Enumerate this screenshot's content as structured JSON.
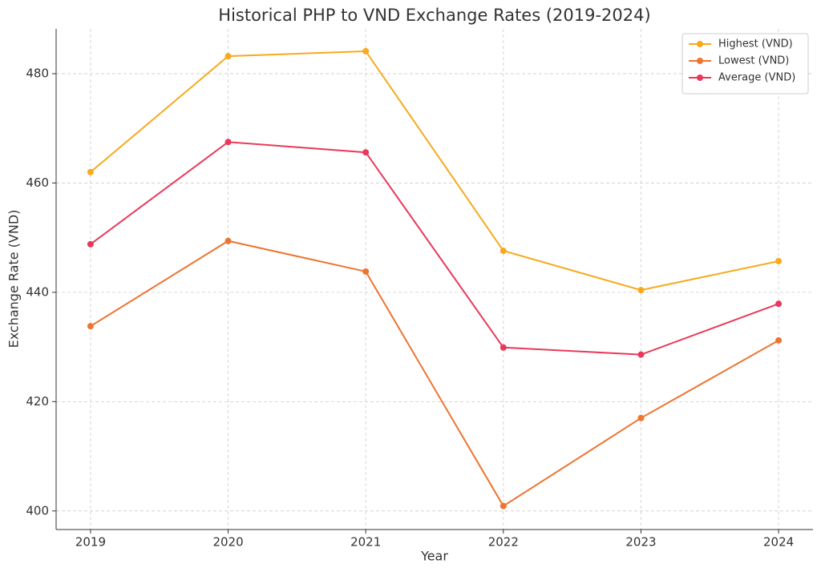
{
  "chart_data": {
    "type": "line",
    "title": "Historical PHP to VND Exchange Rates (2019-2024)",
    "x_label": "Year",
    "y_label": "Exchange Rate (VND)",
    "x": [
      2019,
      2020,
      2021,
      2022,
      2023,
      2024
    ],
    "series": [
      {
        "name": "Highest (VND)",
        "color": "#f8a91c",
        "values": [
          462.0,
          483.2,
          484.1,
          447.6,
          440.4,
          445.7
        ]
      },
      {
        "name": "Lowest (VND)",
        "color": "#ee7431",
        "values": [
          433.8,
          449.4,
          443.8,
          400.9,
          417.0,
          431.2
        ]
      },
      {
        "name": "Average (VND)",
        "color": "#e8395a",
        "values": [
          448.8,
          467.5,
          465.6,
          429.9,
          428.6,
          437.9
        ]
      }
    ],
    "xlim": [
      2018.75,
      2024.25
    ],
    "xticks": [
      2019,
      2020,
      2021,
      2022,
      2023,
      2024
    ],
    "ylim": [
      396.6,
      488.2
    ],
    "yticks": [
      400,
      420,
      440,
      460,
      480
    ],
    "grid": true,
    "legend": "upper-right"
  }
}
